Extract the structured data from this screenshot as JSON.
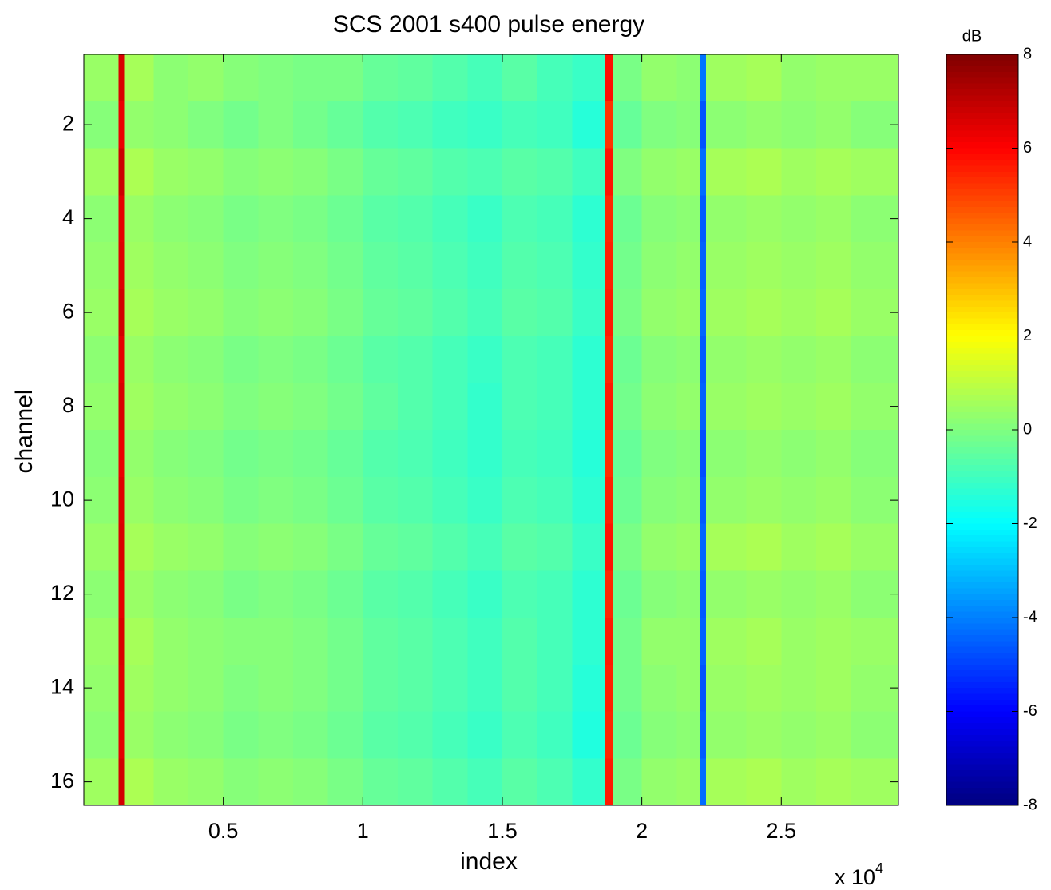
{
  "chart_data": {
    "type": "heatmap",
    "title": "SCS 2001 s400 pulse energy",
    "x_label": "index",
    "y_label": "channel",
    "colorbar_label": "dB",
    "x_scale_base": "x 10",
    "x_scale_exponent": "4",
    "colormap": "jet",
    "xlim": [
      0,
      29200
    ],
    "ylim": [
      0.5,
      16.5
    ],
    "y_reversed": true,
    "clim": [
      -8,
      8
    ],
    "xticks": [
      {
        "value": 5000,
        "label": "0.5"
      },
      {
        "value": 10000,
        "label": "1"
      },
      {
        "value": 15000,
        "label": "1.5"
      },
      {
        "value": 20000,
        "label": "2"
      },
      {
        "value": 25000,
        "label": "2.5"
      }
    ],
    "yticks": [
      2,
      4,
      6,
      8,
      10,
      12,
      14,
      16
    ],
    "cticks": [
      -8,
      -6,
      -4,
      -2,
      0,
      2,
      4,
      6,
      8
    ],
    "xbins": [
      0,
      1250,
      1450,
      2500,
      3750,
      5000,
      6250,
      7500,
      8750,
      10000,
      11250,
      12500,
      13750,
      15000,
      16250,
      17500,
      18700,
      18950,
      20000,
      21250,
      22100,
      22300,
      23750,
      25000,
      26250,
      27500,
      29200
    ],
    "y": [
      1,
      2,
      3,
      4,
      5,
      6,
      7,
      8,
      9,
      10,
      11,
      12,
      13,
      14,
      15,
      16
    ],
    "z": [
      [
        0.4,
        6.6,
        0.6,
        0.2,
        0.3,
        0.1,
        0.0,
        -0.1,
        -0.1,
        -0.4,
        -0.5,
        -0.7,
        -0.9,
        -0.6,
        -0.9,
        -1.1,
        5.8,
        -0.1,
        0.3,
        0.2,
        -4.2,
        0.5,
        0.6,
        0.3,
        0.4,
        0.4
      ],
      [
        0.1,
        6.3,
        0.3,
        0.2,
        0.0,
        -0.2,
        0.0,
        -0.2,
        -0.4,
        -0.7,
        -0.8,
        -1.0,
        -1.1,
        -0.9,
        -1.0,
        -1.4,
        5.2,
        -0.4,
        0.0,
        0.1,
        -4.7,
        0.2,
        0.3,
        0.2,
        0.3,
        0.1
      ],
      [
        0.5,
        6.8,
        0.7,
        0.4,
        0.3,
        0.1,
        0.2,
        0.1,
        -0.1,
        -0.4,
        -0.5,
        -0.7,
        -0.8,
        -0.6,
        -0.7,
        -1.0,
        5.7,
        0.0,
        0.3,
        0.4,
        -4.3,
        0.6,
        0.7,
        0.5,
        0.6,
        0.5
      ],
      [
        0.2,
        6.4,
        0.4,
        0.2,
        0.1,
        -0.1,
        0.0,
        -0.1,
        -0.3,
        -0.6,
        -0.7,
        -0.9,
        -1.1,
        -0.8,
        -0.9,
        -1.3,
        5.4,
        -0.3,
        0.1,
        0.2,
        -4.6,
        0.3,
        0.4,
        0.3,
        0.4,
        0.2
      ],
      [
        0.3,
        6.5,
        0.5,
        0.3,
        0.2,
        0.0,
        0.1,
        0.0,
        -0.2,
        -0.5,
        -0.6,
        -0.8,
        -1.0,
        -0.7,
        -0.8,
        -1.2,
        5.5,
        -0.2,
        0.2,
        0.3,
        -4.5,
        0.4,
        0.5,
        0.4,
        0.5,
        0.3
      ],
      [
        0.4,
        6.7,
        0.6,
        0.4,
        0.3,
        0.1,
        0.2,
        0.1,
        -0.1,
        -0.4,
        -0.5,
        -0.7,
        -0.9,
        -0.6,
        -0.7,
        -1.1,
        5.6,
        -0.1,
        0.3,
        0.4,
        -4.4,
        0.5,
        0.6,
        0.5,
        0.6,
        0.4
      ],
      [
        0.2,
        6.4,
        0.4,
        0.2,
        0.1,
        -0.1,
        0.0,
        -0.1,
        -0.3,
        -0.6,
        -0.7,
        -0.9,
        -1.1,
        -0.8,
        -0.9,
        -1.3,
        5.4,
        -0.3,
        0.1,
        0.2,
        -4.6,
        0.3,
        0.4,
        0.3,
        0.4,
        0.2
      ],
      [
        0.3,
        6.6,
        0.5,
        0.3,
        0.2,
        0.0,
        0.1,
        0.0,
        -0.2,
        -0.5,
        -0.7,
        -0.9,
        -1.2,
        -0.8,
        -0.9,
        -1.3,
        5.6,
        -0.2,
        0.2,
        0.3,
        -4.5,
        0.4,
        0.5,
        0.4,
        0.5,
        0.3
      ],
      [
        0.1,
        6.3,
        0.3,
        0.1,
        0.0,
        -0.2,
        -0.1,
        -0.2,
        -0.4,
        -0.7,
        -0.8,
        -1.0,
        -1.2,
        -0.9,
        -1.0,
        -1.4,
        5.3,
        -0.4,
        0.0,
        0.1,
        -4.8,
        0.2,
        0.3,
        0.2,
        0.3,
        0.1
      ],
      [
        0.2,
        6.5,
        0.4,
        0.2,
        0.1,
        -0.1,
        0.0,
        -0.1,
        -0.3,
        -0.6,
        -0.7,
        -0.9,
        -1.1,
        -0.8,
        -0.9,
        -1.3,
        5.5,
        -0.3,
        0.1,
        0.2,
        -4.6,
        0.3,
        0.4,
        0.3,
        0.4,
        0.2
      ],
      [
        0.4,
        6.6,
        0.6,
        0.4,
        0.3,
        0.1,
        0.2,
        0.1,
        -0.1,
        -0.4,
        -0.5,
        -0.7,
        -0.9,
        -0.6,
        -0.7,
        -1.1,
        5.7,
        -0.1,
        0.3,
        0.4,
        -4.4,
        0.6,
        0.7,
        0.5,
        0.6,
        0.4
      ],
      [
        0.2,
        6.4,
        0.4,
        0.2,
        0.1,
        -0.1,
        0.0,
        -0.1,
        -0.3,
        -0.6,
        -0.7,
        -0.9,
        -1.1,
        -0.8,
        -0.9,
        -1.3,
        5.4,
        -0.3,
        0.1,
        0.2,
        -4.6,
        0.3,
        0.4,
        0.3,
        0.4,
        0.2
      ],
      [
        0.4,
        6.6,
        0.6,
        0.3,
        0.2,
        0.1,
        0.1,
        0.0,
        -0.2,
        -0.5,
        -0.6,
        -0.8,
        -1.0,
        -0.7,
        -0.9,
        -1.3,
        5.6,
        -0.2,
        0.3,
        0.3,
        -4.5,
        0.5,
        0.6,
        0.4,
        0.5,
        0.4
      ],
      [
        0.3,
        6.5,
        0.5,
        0.3,
        0.2,
        0.0,
        0.1,
        0.0,
        -0.2,
        -0.5,
        -0.6,
        -0.8,
        -1.0,
        -0.7,
        -0.9,
        -1.4,
        5.5,
        -0.2,
        0.2,
        0.3,
        -4.7,
        0.4,
        0.5,
        0.4,
        0.5,
        0.3
      ],
      [
        0.2,
        6.4,
        0.4,
        0.2,
        0.1,
        -0.1,
        0.0,
        -0.1,
        -0.3,
        -0.6,
        -0.7,
        -0.9,
        -1.1,
        -0.8,
        -1.0,
        -1.5,
        5.4,
        -0.3,
        0.1,
        0.2,
        -4.6,
        0.3,
        0.4,
        0.3,
        0.4,
        0.2
      ],
      [
        0.5,
        6.7,
        0.7,
        0.4,
        0.3,
        0.1,
        0.2,
        0.1,
        -0.1,
        -0.4,
        -0.5,
        -0.7,
        -0.9,
        -0.6,
        -0.8,
        -1.2,
        5.6,
        -0.1,
        0.3,
        0.4,
        -4.3,
        0.6,
        0.7,
        0.5,
        0.6,
        0.5
      ]
    ]
  }
}
